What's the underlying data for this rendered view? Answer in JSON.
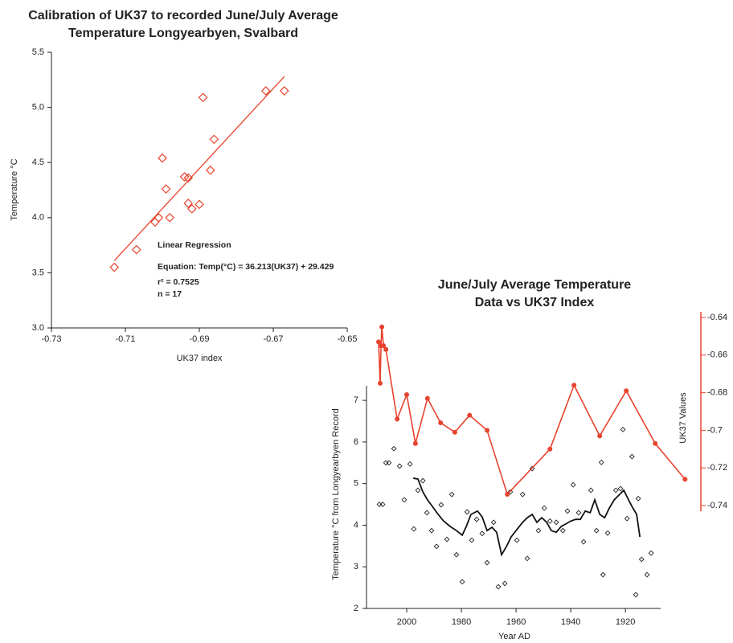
{
  "chart_data": [
    {
      "type": "scatter",
      "title": [
        "Calibration of UK37 to recorded June/July Average",
        "Temperature Longyearbyen, Svalbard"
      ],
      "x_label": "UK37 index",
      "y_label": "Temperature °C",
      "xlim": [
        -0.73,
        -0.65
      ],
      "xticks": [
        -0.73,
        -0.71,
        -0.69,
        -0.67,
        -0.65
      ],
      "ylim": [
        3.0,
        5.5
      ],
      "yticks": [
        {
          "value": 3.0,
          "label": "3.0"
        },
        3.5,
        {
          "value": 4.0,
          "label": "4.0"
        },
        4.5,
        {
          "value": 5.0,
          "label": "5.0"
        },
        5.5
      ],
      "series": [
        {
          "color": "#e8432e",
          "marker": "diamond",
          "x": [
            -0.713,
            -0.707,
            -0.702,
            -0.701,
            -0.698,
            -0.7,
            -0.699,
            -0.694,
            -0.693,
            -0.693,
            -0.692,
            -0.69,
            -0.689,
            -0.687,
            -0.686,
            -0.672,
            -0.667
          ],
          "values": [
            3.55,
            3.71,
            3.96,
            4.0,
            4.0,
            4.54,
            4.26,
            4.37,
            4.36,
            4.13,
            4.08,
            4.12,
            5.09,
            4.43,
            4.71,
            5.15,
            5.15
          ]
        }
      ],
      "trendline": {
        "color": "#e8432e",
        "x": [
          -0.713,
          -0.667
        ],
        "values": [
          3.61,
          5.28
        ]
      },
      "annotations": [
        "Linear Regression",
        "Equation: Temp(°C) = 36.213(UK37) + 29.429",
        "r² = 0.7525",
        "n = 17"
      ]
    },
    {
      "type": "line",
      "title": [
        "June/July Average Temperature",
        "Data vs UK37 Index"
      ],
      "x_label": "Year AD",
      "y_label": "Temperature °C from Longyearbyen Record",
      "y2_label": "UK37 Values",
      "y2_color": "#e8432e",
      "xlim": [
        2015,
        1893
      ],
      "xticks": [
        2000,
        1980,
        1960,
        1940,
        1920
      ],
      "ylim": [
        2,
        7.35
      ],
      "yticks": [
        2,
        3,
        4,
        5,
        6,
        7
      ],
      "y2lim": [
        -0.743,
        -0.637
      ],
      "y2ticks": [
        -0.64,
        -0.66,
        -0.68,
        -0.7,
        -0.72,
        -0.74
      ],
      "series": [
        {
          "color": "#222222",
          "mode": "markers",
          "x": [
            2010.0,
            2008.8,
            2007.6,
            2006.5,
            2004.7,
            2002.6,
            2000.9,
            1998.8,
            1997.4,
            1995.9,
            1994.1,
            1992.6,
            1990.9,
            1989.1,
            1987.4,
            1985.3,
            1983.5,
            1981.8,
            1979.7,
            1977.9,
            1976.2,
            1974.4,
            1972.4,
            1970.6,
            1968.2,
            1966.5,
            1964.1,
            1962.1,
            1959.7,
            1957.6,
            1955.9,
            1954.1,
            1951.8,
            1949.7,
            1947.6,
            1945.3,
            1942.9,
            1941.2,
            1939.1,
            1937.1,
            1935.3,
            1932.6,
            1930.6,
            1928.8,
            1928.2,
            1926.5,
            1923.5,
            1921.8,
            1920.9,
            1919.4,
            1917.6,
            1916.2,
            1915.3,
            1914.1,
            1912.1,
            1910.6
          ],
          "values": [
            4.5,
            4.5,
            5.5,
            5.5,
            5.84,
            5.42,
            4.61,
            5.47,
            3.91,
            4.84,
            5.07,
            4.3,
            3.87,
            3.49,
            4.49,
            3.66,
            4.74,
            3.29,
            2.64,
            4.32,
            3.64,
            4.14,
            3.8,
            3.1,
            4.07,
            2.52,
            2.6,
            4.8,
            3.64,
            4.74,
            3.2,
            5.36,
            3.87,
            4.41,
            4.1,
            4.07,
            3.87,
            4.34,
            4.97,
            4.3,
            3.6,
            4.84,
            3.87,
            5.51,
            2.81,
            3.81,
            4.84,
            4.88,
            6.3,
            4.16,
            5.65,
            2.33,
            4.64,
            3.18,
            2.81,
            3.33
          ]
        },
        {
          "color": "#111111",
          "mode": "line",
          "x": [
            1997.6,
            1995.9,
            1994.1,
            1992.4,
            1990.6,
            1988.5,
            1986.5,
            1984.1,
            1981.8,
            1979.7,
            1978.2,
            1976.5,
            1974.1,
            1972.4,
            1970.6,
            1968.8,
            1967.1,
            1965.3,
            1963.5,
            1961.8,
            1960.0,
            1957.6,
            1955.9,
            1954.1,
            1952.4,
            1950.6,
            1948.8,
            1947.1,
            1945.3,
            1943.5,
            1941.8,
            1940.0,
            1938.2,
            1936.5,
            1934.7,
            1932.9,
            1931.2,
            1929.4,
            1927.6,
            1925.9,
            1924.1,
            1922.4,
            1920.6,
            1919.4,
            1917.6,
            1915.9,
            1914.7
          ],
          "values": [
            5.13,
            5.11,
            4.8,
            4.61,
            4.45,
            4.26,
            4.1,
            3.97,
            3.87,
            3.76,
            3.97,
            4.26,
            4.34,
            4.2,
            3.87,
            3.95,
            3.83,
            3.29,
            3.49,
            3.72,
            3.87,
            4.07,
            4.18,
            4.26,
            4.07,
            4.18,
            4.07,
            3.87,
            3.83,
            3.97,
            4.03,
            4.1,
            4.14,
            4.14,
            4.34,
            4.3,
            4.61,
            4.26,
            4.18,
            4.41,
            4.61,
            4.72,
            4.84,
            4.68,
            4.45,
            4.26,
            3.72
          ]
        },
        {
          "color": "#e8432e",
          "mode": "line+markers",
          "axis": "y2",
          "x": [
            2010.3,
            2009.7,
            2009.4,
            2009.1,
            2008.5,
            2007.6,
            2003.5,
            2000.0,
            1996.8,
            1992.4,
            1987.6,
            1982.4,
            1977.0,
            1970.6,
            1963.2,
            1947.6,
            1938.8,
            1929.4,
            1919.7,
            1909.1,
            1898.2
          ],
          "values": [
            -0.653,
            -0.675,
            -0.655,
            -0.645,
            -0.655,
            -0.657,
            -0.694,
            -0.681,
            -0.707,
            -0.683,
            -0.696,
            -0.701,
            -0.692,
            -0.7,
            -0.734,
            -0.71,
            -0.676,
            -0.703,
            -0.679,
            -0.707,
            -0.726
          ]
        }
      ]
    }
  ]
}
